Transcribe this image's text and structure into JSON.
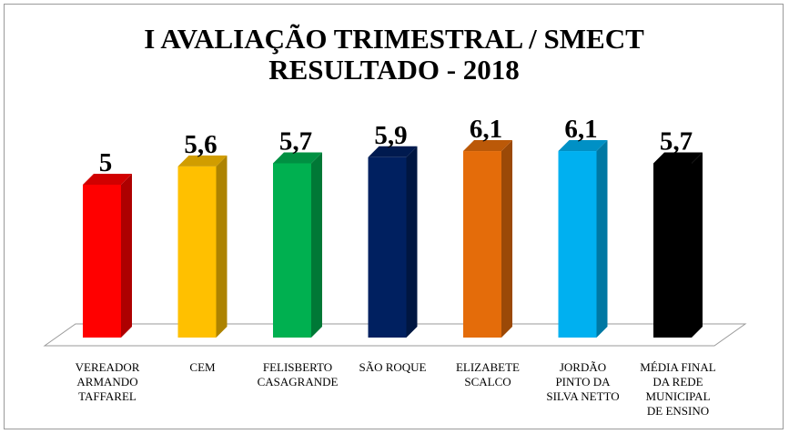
{
  "chart_data": {
    "type": "bar",
    "title": "I AVALIAÇÃO TRIMESTRAL / SMECT",
    "subtitle": "RESULTADO - 2018",
    "categories": [
      [
        "VEREADOR",
        "ARMANDO",
        "TAFFAREL"
      ],
      [
        "CEM"
      ],
      [
        "FELISBERTO",
        "CASAGRANDE"
      ],
      [
        "SÃO ROQUE"
      ],
      [
        "ELIZABETE",
        "SCALCO"
      ],
      [
        "JORDÃO",
        "PINTO DA",
        "SILVA NETTO"
      ],
      [
        "MÉDIA FINAL",
        "DA REDE",
        "MUNICIPAL",
        "DE ENSINO"
      ]
    ],
    "values": [
      5,
      5.6,
      5.7,
      5.9,
      6.1,
      6.1,
      5.7
    ],
    "value_labels": [
      "5",
      "5,6",
      "5,7",
      "5,9",
      "6,1",
      "6,1",
      "5,7"
    ],
    "colors": [
      "#ff0000",
      "#ffc000",
      "#00b050",
      "#002060",
      "#e46c0a",
      "#00b0f0",
      "#000000"
    ],
    "ylim": [
      0,
      7
    ],
    "style": "3d-bar",
    "grid": false,
    "legend": "none"
  }
}
